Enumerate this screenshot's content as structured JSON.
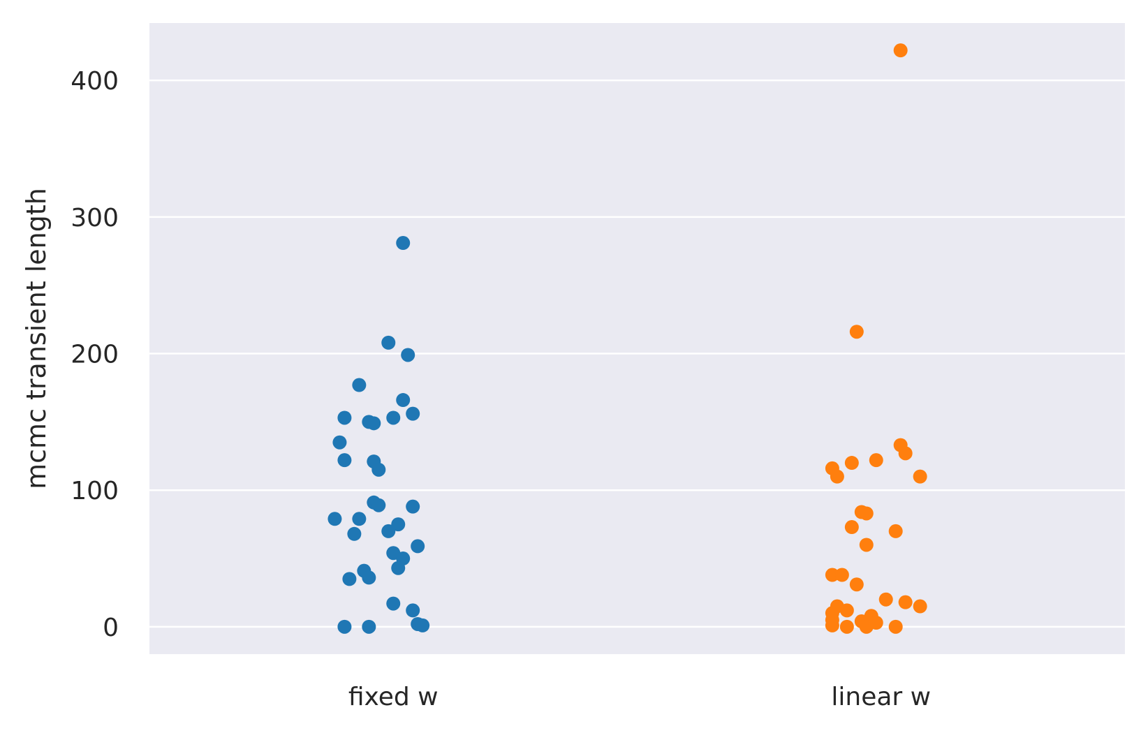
{
  "chart_data": {
    "type": "scatter",
    "title": "",
    "xlabel": "",
    "ylabel": "mcmc transient length",
    "categories": [
      "fixed w",
      "linear w"
    ],
    "ylim": [
      -20,
      442
    ],
    "yticks": [
      0,
      100,
      200,
      300,
      400
    ],
    "grid": "horizontal",
    "style": "seaborn-darkgrid",
    "colors": {
      "background": "#EAEAF2",
      "grid": "#FFFFFF"
    },
    "series": [
      {
        "category": "fixed w",
        "color": "#1F77B4",
        "points": [
          {
            "offset": 0.02,
            "y": 281
          },
          {
            "offset": -0.01,
            "y": 208
          },
          {
            "offset": 0.03,
            "y": 199
          },
          {
            "offset": -0.07,
            "y": 177
          },
          {
            "offset": 0.02,
            "y": 166
          },
          {
            "offset": 0.04,
            "y": 156
          },
          {
            "offset": -0.1,
            "y": 153
          },
          {
            "offset": 0.0,
            "y": 153
          },
          {
            "offset": -0.05,
            "y": 150
          },
          {
            "offset": -0.04,
            "y": 149
          },
          {
            "offset": -0.11,
            "y": 135
          },
          {
            "offset": -0.1,
            "y": 122
          },
          {
            "offset": -0.04,
            "y": 121
          },
          {
            "offset": -0.03,
            "y": 115
          },
          {
            "offset": -0.04,
            "y": 91
          },
          {
            "offset": -0.03,
            "y": 89
          },
          {
            "offset": 0.04,
            "y": 88
          },
          {
            "offset": -0.12,
            "y": 79
          },
          {
            "offset": -0.07,
            "y": 79
          },
          {
            "offset": 0.01,
            "y": 75
          },
          {
            "offset": -0.01,
            "y": 70
          },
          {
            "offset": -0.08,
            "y": 68
          },
          {
            "offset": 0.05,
            "y": 59
          },
          {
            "offset": 0.0,
            "y": 54
          },
          {
            "offset": 0.02,
            "y": 50
          },
          {
            "offset": 0.01,
            "y": 43
          },
          {
            "offset": -0.06,
            "y": 41
          },
          {
            "offset": -0.05,
            "y": 36
          },
          {
            "offset": -0.09,
            "y": 35
          },
          {
            "offset": 0.0,
            "y": 17
          },
          {
            "offset": 0.04,
            "y": 12
          },
          {
            "offset": 0.05,
            "y": 2
          },
          {
            "offset": 0.06,
            "y": 1
          },
          {
            "offset": -0.1,
            "y": 0
          },
          {
            "offset": -0.05,
            "y": 0
          }
        ]
      },
      {
        "category": "linear w",
        "color": "#FF7F0E",
        "points": [
          {
            "offset": 0.04,
            "y": 422
          },
          {
            "offset": -0.05,
            "y": 216
          },
          {
            "offset": 0.04,
            "y": 133
          },
          {
            "offset": 0.05,
            "y": 127
          },
          {
            "offset": -0.01,
            "y": 122
          },
          {
            "offset": -0.06,
            "y": 120
          },
          {
            "offset": -0.1,
            "y": 116
          },
          {
            "offset": -0.09,
            "y": 110
          },
          {
            "offset": 0.08,
            "y": 110
          },
          {
            "offset": -0.04,
            "y": 84
          },
          {
            "offset": -0.03,
            "y": 83
          },
          {
            "offset": -0.06,
            "y": 73
          },
          {
            "offset": 0.03,
            "y": 70
          },
          {
            "offset": -0.03,
            "y": 60
          },
          {
            "offset": -0.1,
            "y": 38
          },
          {
            "offset": -0.08,
            "y": 38
          },
          {
            "offset": -0.05,
            "y": 31
          },
          {
            "offset": 0.01,
            "y": 20
          },
          {
            "offset": 0.05,
            "y": 18
          },
          {
            "offset": 0.08,
            "y": 15
          },
          {
            "offset": -0.09,
            "y": 15
          },
          {
            "offset": -0.07,
            "y": 12
          },
          {
            "offset": -0.1,
            "y": 10
          },
          {
            "offset": -0.02,
            "y": 8
          },
          {
            "offset": -0.1,
            "y": 5
          },
          {
            "offset": -0.04,
            "y": 4
          },
          {
            "offset": -0.01,
            "y": 3
          },
          {
            "offset": -0.1,
            "y": 1
          },
          {
            "offset": -0.07,
            "y": 0
          },
          {
            "offset": -0.03,
            "y": 0
          },
          {
            "offset": 0.03,
            "y": 0
          }
        ]
      }
    ]
  }
}
